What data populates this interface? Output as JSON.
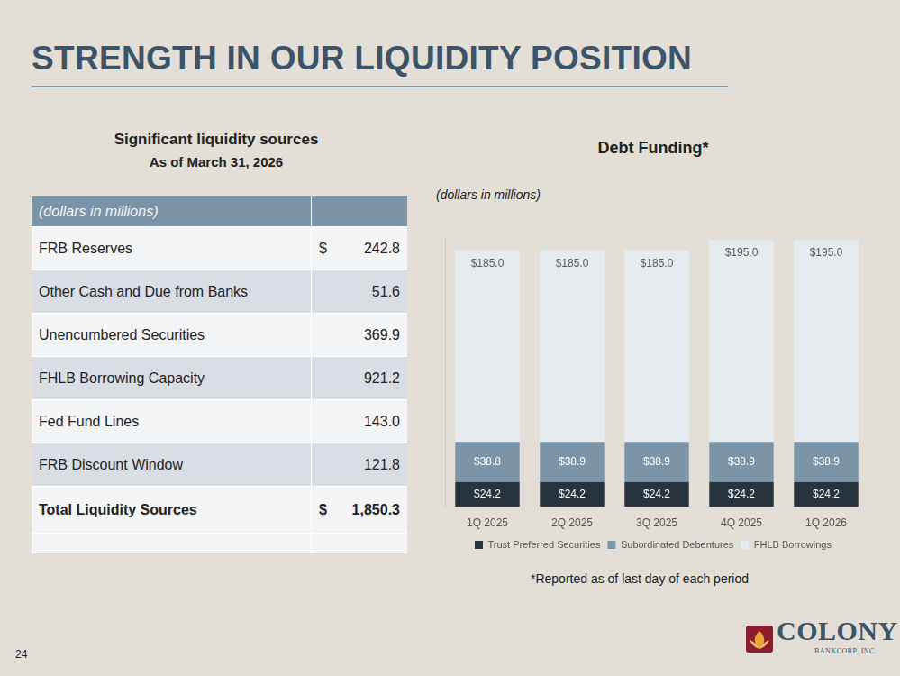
{
  "slide": {
    "title": "STRENGTH IN OUR LIQUIDITY POSITION",
    "page_number": "24",
    "logo": {
      "name": "COLONY",
      "subtitle": "BANKCORP, INC."
    }
  },
  "table": {
    "title": "Significant liquidity sources",
    "subtitle": "As of March 31, 2026",
    "header": "(dollars in millions)",
    "rows": [
      [
        "FRB Reserves",
        "$",
        "242.8"
      ],
      [
        "Other Cash and Due from Banks",
        null,
        "51.6"
      ],
      [
        "Unencumbered Securities",
        null,
        "369.9"
      ],
      [
        "FHLB Borrowing Capacity",
        null,
        "921.2"
      ],
      [
        "Fed Fund Lines",
        null,
        "143.0"
      ],
      [
        "FRB Discount Window",
        null,
        "121.8"
      ]
    ],
    "total": [
      "Total Liquidity Sources",
      "$",
      "1,850.3"
    ]
  },
  "chart_data": {
    "type": "bar",
    "title": "Debt Funding*",
    "subtitle": "(dollars in millions)",
    "note": "*Reported as of last day of each period",
    "categories": [
      "1Q 2025",
      "2Q 2025",
      "3Q 2025",
      "4Q 2025",
      "1Q 2026"
    ],
    "series": [
      {
        "name": "Trust Preferred Securities",
        "color": "#27333d",
        "values": [
          24.2,
          24.2,
          24.2,
          24.2,
          24.2
        ],
        "value_labels": [
          "$24.2",
          "$24.2",
          "$24.2",
          "$24.2",
          "$24.2"
        ]
      },
      {
        "name": "Subordinated Debentures",
        "color": "#7b94a7",
        "values": [
          38.8,
          38.9,
          38.9,
          38.9,
          38.9
        ],
        "value_labels": [
          "$38.8",
          "$38.9",
          "$38.9",
          "$38.9",
          "$38.9"
        ]
      },
      {
        "name": "FHLB Borrowings",
        "color": "#e6ebf0",
        "values": [
          185.0,
          185.0,
          185.0,
          195.0,
          195.0
        ],
        "value_labels": [
          "$185.0",
          "$185.0",
          "$185.0",
          "$195.0",
          "$195.0"
        ]
      }
    ],
    "stacked": true,
    "data_labels": true,
    "legend": "bottom",
    "grid": false,
    "tick_labels": "x",
    "ylim": [
      0,
      260
    ]
  }
}
